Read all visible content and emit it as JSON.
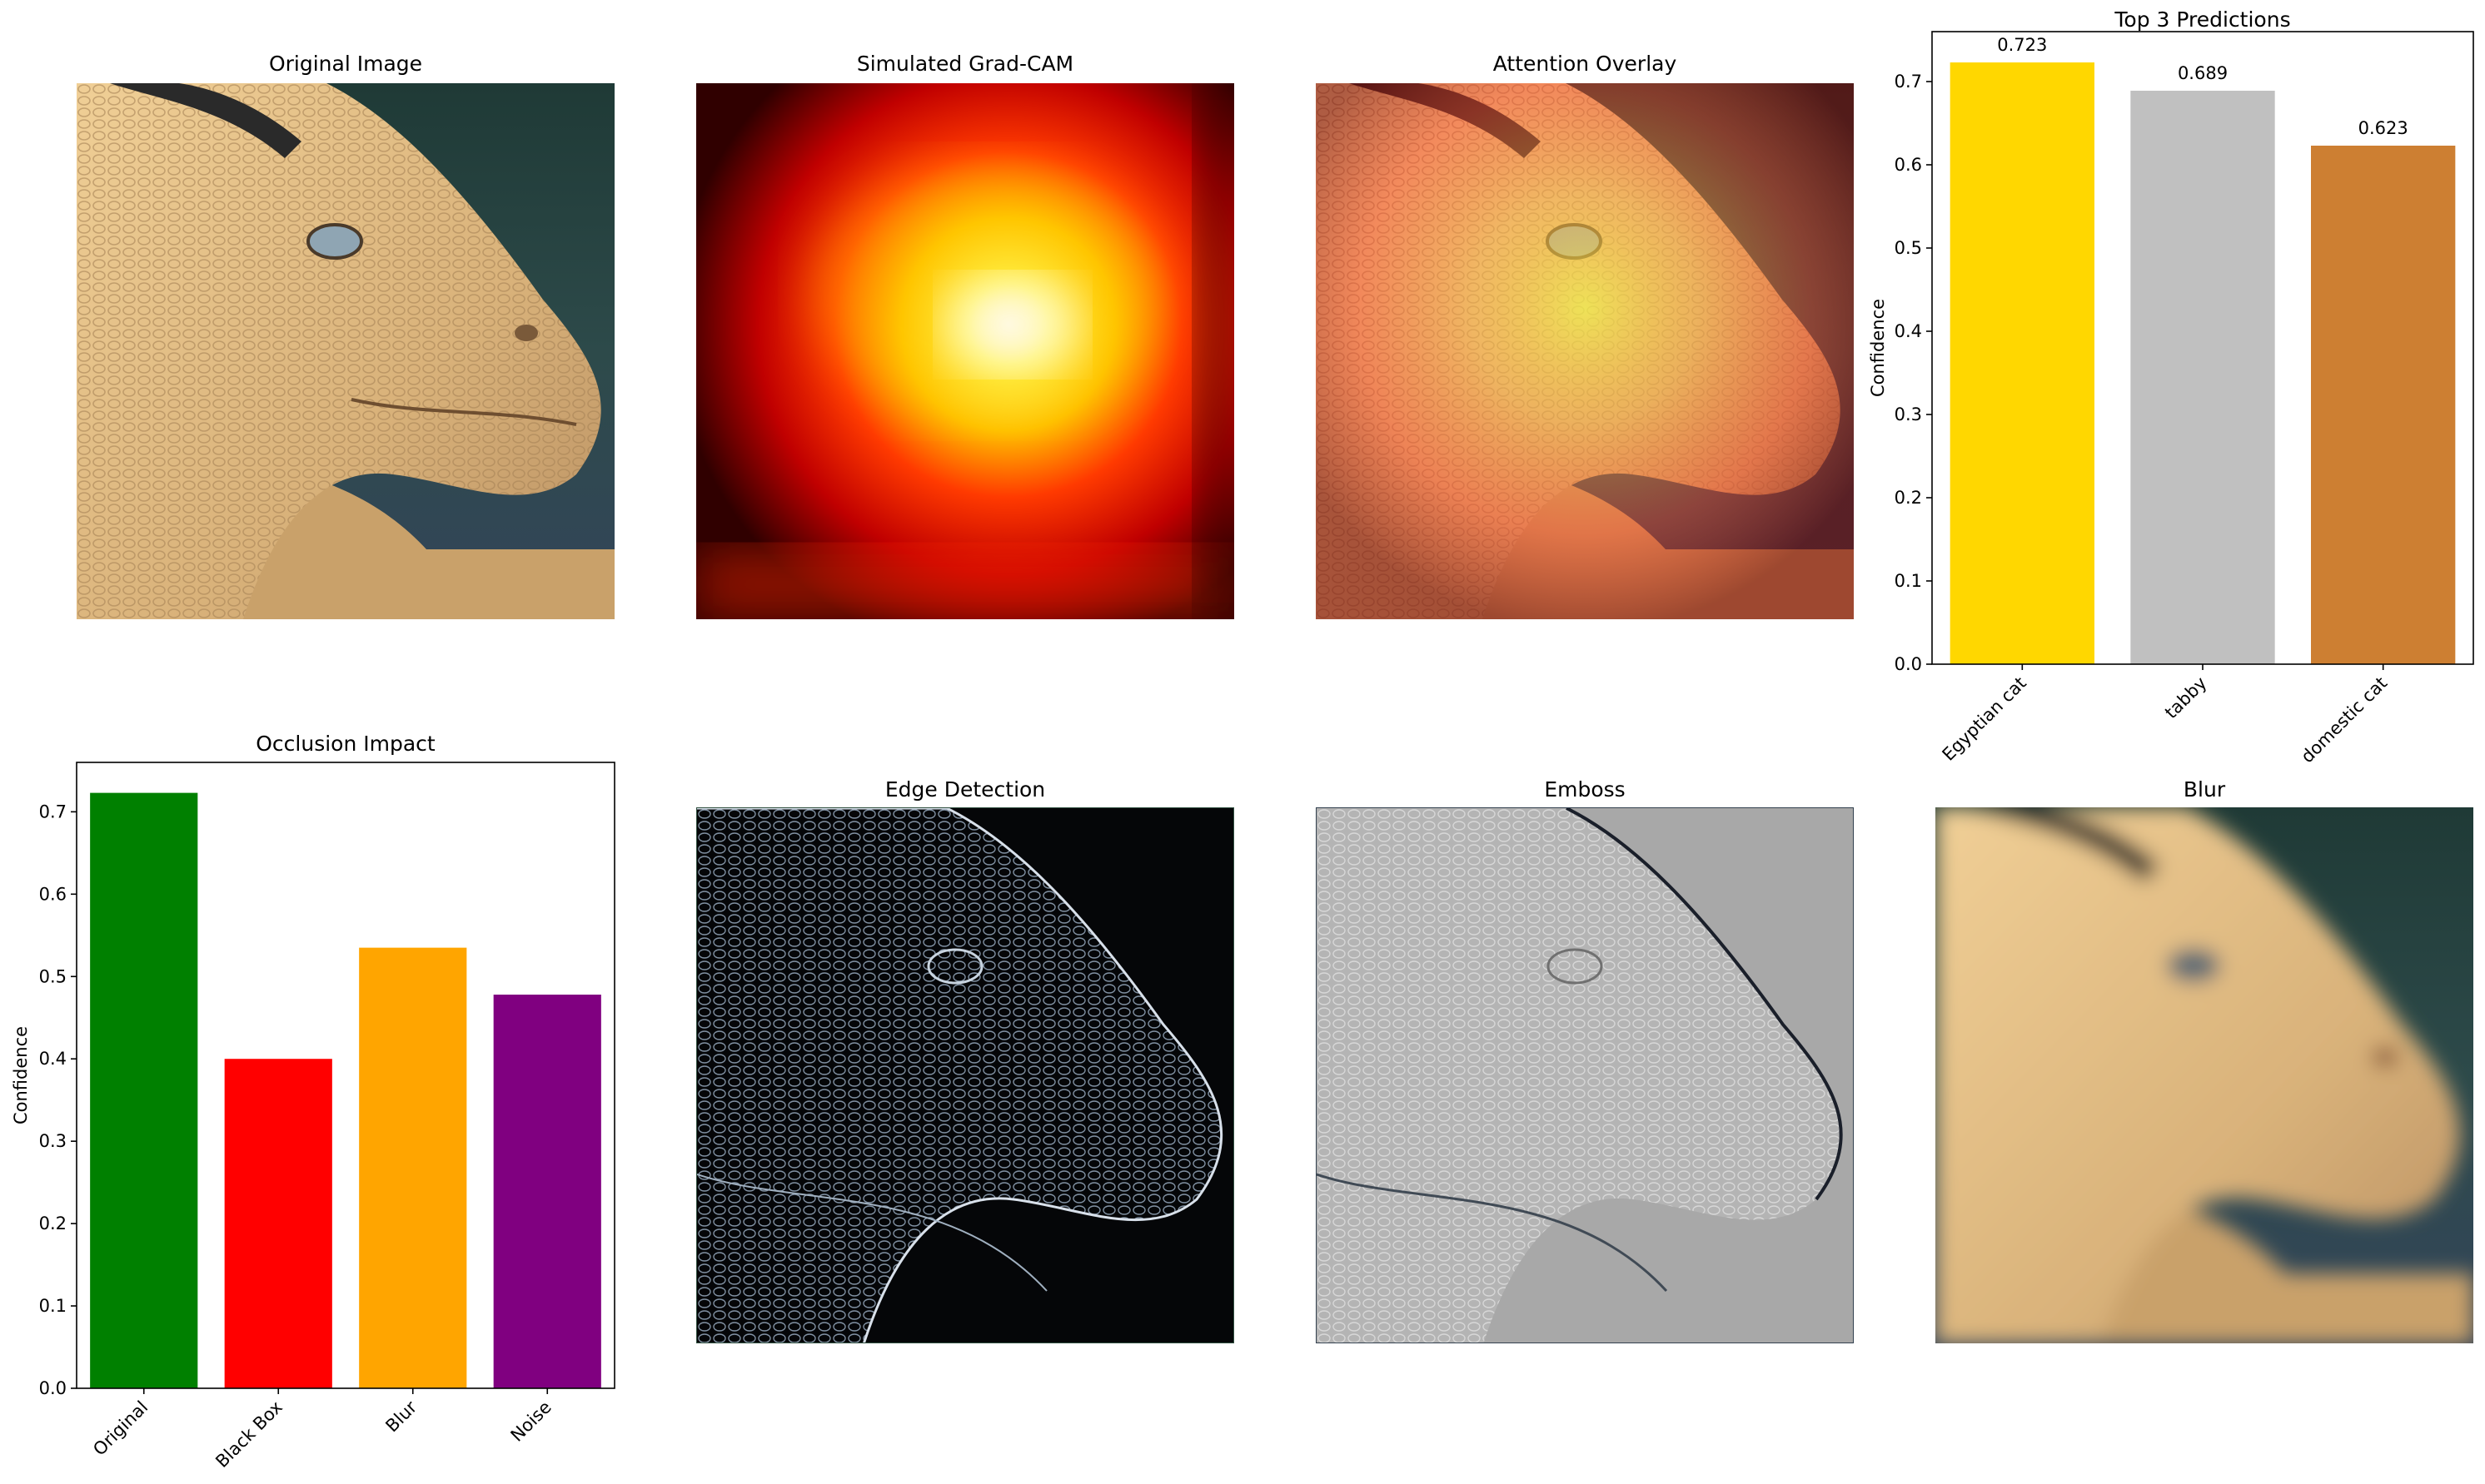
{
  "panels": {
    "original": {
      "title": "Original Image"
    },
    "gradcam": {
      "title": "Simulated Grad-CAM"
    },
    "overlay": {
      "title": "Attention Overlay"
    },
    "edge": {
      "title": "Edge Detection"
    },
    "emboss": {
      "title": "Emboss"
    },
    "blur": {
      "title": "Blur"
    }
  },
  "chart_data": [
    {
      "id": "top3",
      "type": "bar",
      "title": "Top 3 Predictions",
      "xlabel": "",
      "ylabel": "Confidence",
      "categories": [
        "Egyptian cat",
        "tabby",
        "domestic cat"
      ],
      "values": [
        0.723,
        0.689,
        0.623
      ],
      "value_labels": [
        "0.723",
        "0.689",
        "0.623"
      ],
      "colors": [
        "#FFD700",
        "#C0C0C0",
        "#CD7F32"
      ],
      "ylim": [
        0,
        0.76
      ],
      "yticks": [
        0.0,
        0.1,
        0.2,
        0.3,
        0.4,
        0.5,
        0.6,
        0.7
      ],
      "ytick_labels": [
        "0.0",
        "0.1",
        "0.2",
        "0.3",
        "0.4",
        "0.5",
        "0.6",
        "0.7"
      ],
      "xtick_rotation": 45,
      "grid": false
    },
    {
      "id": "occlusion",
      "type": "bar",
      "title": "Occlusion Impact",
      "xlabel": "",
      "ylabel": "Confidence",
      "categories": [
        "Original",
        "Black Box",
        "Blur",
        "Noise"
      ],
      "values": [
        0.723,
        0.4,
        0.535,
        0.478
      ],
      "colors": [
        "#008000",
        "#FF0000",
        "#FFA500",
        "#800080"
      ],
      "ylim": [
        0,
        0.76
      ],
      "yticks": [
        0.0,
        0.1,
        0.2,
        0.3,
        0.4,
        0.5,
        0.6,
        0.7
      ],
      "ytick_labels": [
        "0.0",
        "0.1",
        "0.2",
        "0.3",
        "0.4",
        "0.5",
        "0.6",
        "0.7"
      ],
      "xtick_rotation": 45,
      "grid": false
    }
  ]
}
